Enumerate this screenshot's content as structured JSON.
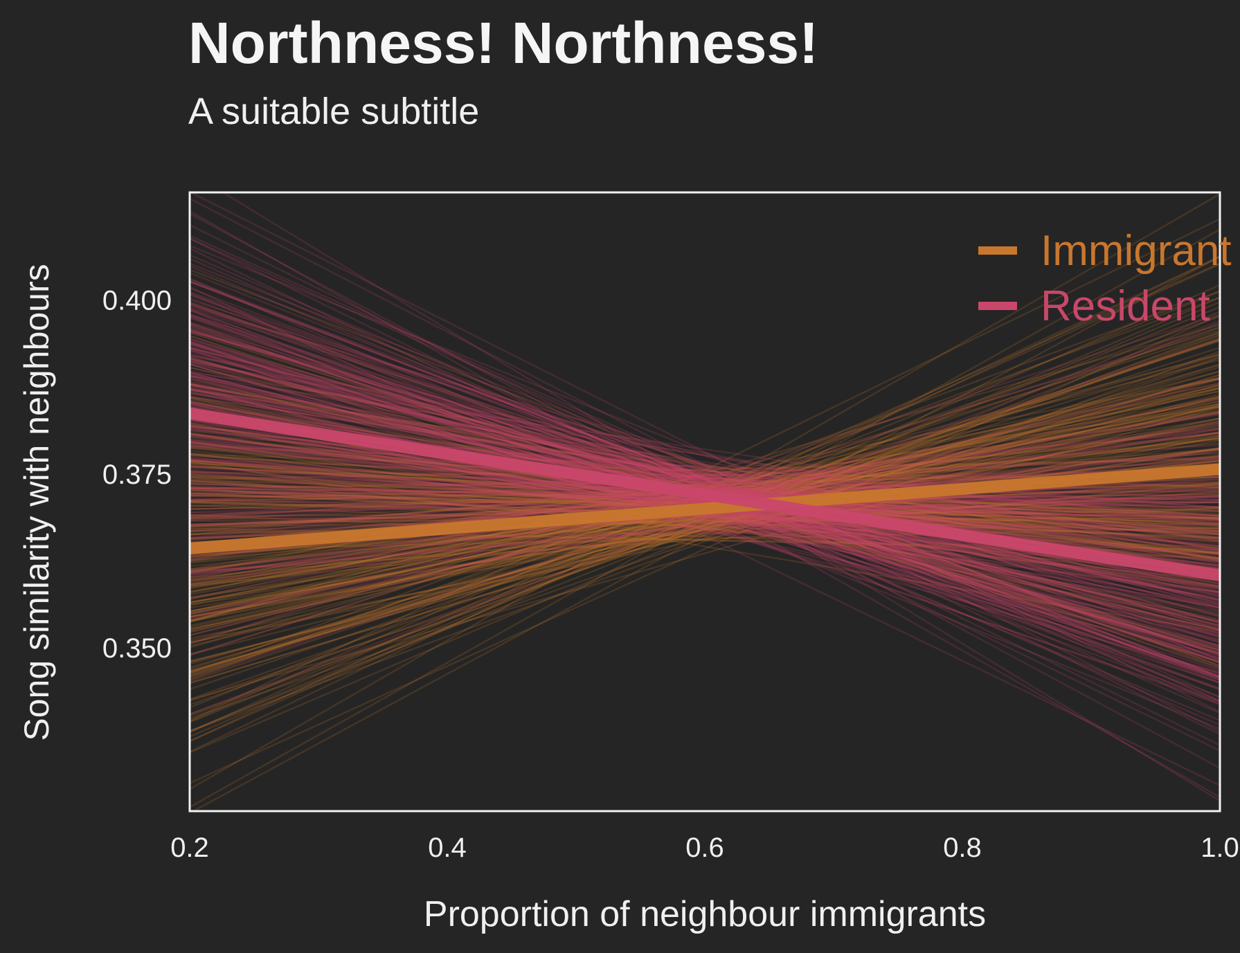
{
  "chart_data": {
    "type": "line",
    "title": "Northness! Northness!",
    "subtitle": "A suitable subtitle",
    "xlabel": "Proportion of neighbour immigrants",
    "ylabel": "Song similarity with neighbours",
    "xlim": [
      0.2,
      1.0
    ],
    "ylim": [
      0.3265,
      0.4155
    ],
    "x_ticks": [
      0.2,
      0.4,
      0.6,
      0.8,
      1.0
    ],
    "x_tick_labels": [
      "0.2",
      "0.4",
      "0.6",
      "0.8",
      "1.0"
    ],
    "y_ticks": [
      0.35,
      0.375,
      0.4
    ],
    "y_tick_labels": [
      "0.350",
      "0.375",
      "0.400"
    ],
    "grid": false,
    "legend_position": "top-right",
    "series": [
      {
        "name": "Immigrant",
        "color": "#c8772e",
        "x": [
          0.2,
          1.0
        ],
        "y": [
          0.3643,
          0.3757
        ],
        "draws": {
          "pivot_x": 0.62,
          "pivot_y": 0.3705,
          "slope_sd": 0.032,
          "intercept_sd": 0.0023,
          "count": 260,
          "seed": 11
        }
      },
      {
        "name": "Resident",
        "color": "#c9476a",
        "x": [
          0.2,
          1.0
        ],
        "y": [
          0.3837,
          0.3604
        ],
        "draws": {
          "pivot_x": 0.62,
          "pivot_y": 0.3716,
          "slope_sd": 0.034,
          "intercept_sd": 0.0022,
          "count": 260,
          "seed": 29
        }
      }
    ]
  }
}
